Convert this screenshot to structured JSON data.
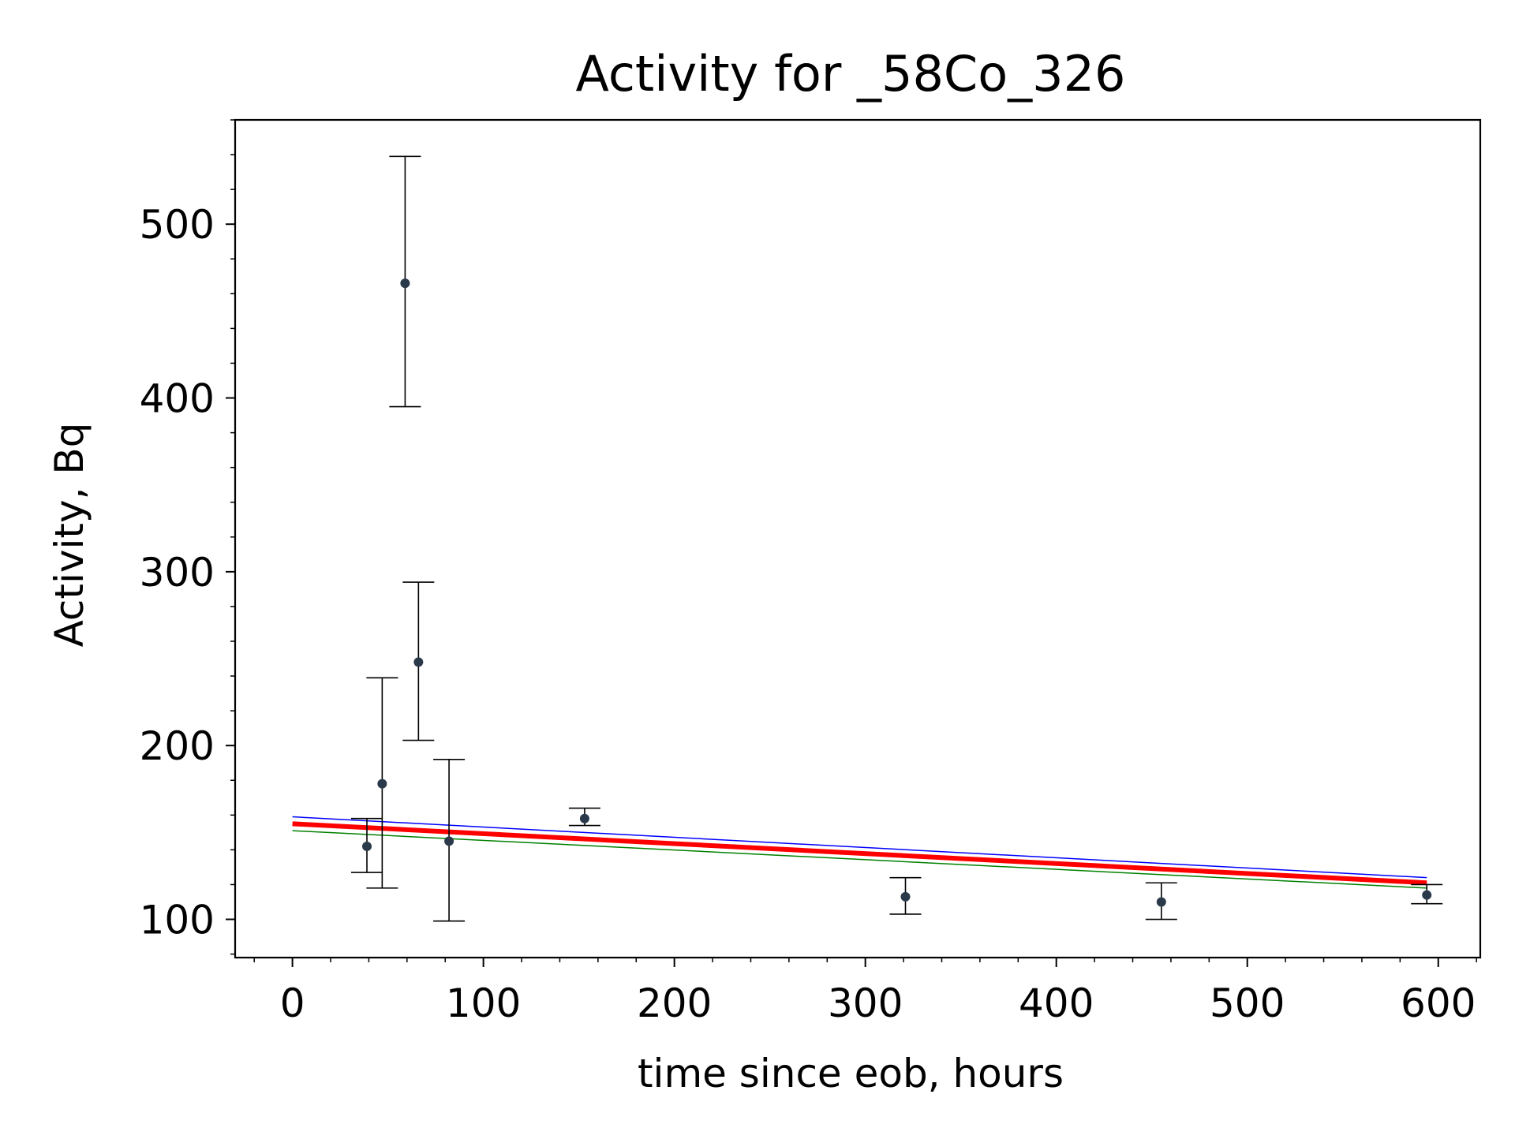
{
  "chart_data": {
    "type": "scatter",
    "title": "Activity for _58Co_326",
    "xlabel": "time since eob, hours",
    "ylabel": "Activity, Bq",
    "xlim": [
      -30,
      622
    ],
    "ylim": [
      78,
      560
    ],
    "xticks": [
      0,
      100,
      200,
      300,
      400,
      500,
      600
    ],
    "xtick_labels": [
      "0",
      "100",
      "200",
      "300",
      "400",
      "500",
      "600"
    ],
    "yticks": [
      100,
      200,
      300,
      400,
      500
    ],
    "ytick_labels": [
      "100",
      "200",
      "300",
      "400",
      "500"
    ],
    "grid": false,
    "legend": "none",
    "colors": {
      "points": "#2b3a4a",
      "errorbars": "#000000",
      "fit": "#ff0000",
      "upper_bound": "#0000ff",
      "lower_bound": "#008000"
    },
    "measurements": [
      {
        "x": 39,
        "y": 142,
        "yerr_low": 127,
        "yerr_high": 158
      },
      {
        "x": 47,
        "y": 178,
        "yerr_low": 118,
        "yerr_high": 239
      },
      {
        "x": 59,
        "y": 466,
        "yerr_low": 395,
        "yerr_high": 539
      },
      {
        "x": 66,
        "y": 248,
        "yerr_low": 203,
        "yerr_high": 294
      },
      {
        "x": 82,
        "y": 145,
        "yerr_low": 99,
        "yerr_high": 192
      },
      {
        "x": 153,
        "y": 158,
        "yerr_low": 154,
        "yerr_high": 164
      },
      {
        "x": 321,
        "y": 113,
        "yerr_low": 103,
        "yerr_high": 124
      },
      {
        "x": 455,
        "y": 110,
        "yerr_low": 100,
        "yerr_high": 121
      },
      {
        "x": 594,
        "y": 114,
        "yerr_low": 109,
        "yerr_high": 120
      }
    ],
    "fit_lines": [
      {
        "role": "fit",
        "x": [
          0,
          594
        ],
        "y": [
          155,
          121
        ],
        "width": 6
      },
      {
        "role": "upper",
        "x": [
          0,
          594
        ],
        "y": [
          159,
          124
        ],
        "width": 1.5
      },
      {
        "role": "lower",
        "x": [
          0,
          594
        ],
        "y": [
          151,
          118
        ],
        "width": 1.5
      }
    ]
  }
}
